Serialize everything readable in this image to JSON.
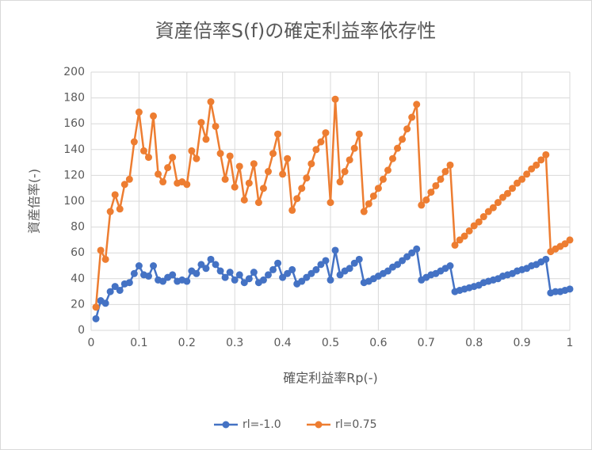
{
  "chart_data": {
    "type": "line",
    "title": "資産倍率S(f)の確定利益率依存性",
    "xlabel": "確定利益率Rp(-)",
    "ylabel": "資産倍率(-)",
    "x": [
      0.01,
      0.02,
      0.03,
      0.04,
      0.05,
      0.06,
      0.07,
      0.08,
      0.09,
      0.1,
      0.11,
      0.12,
      0.13,
      0.14,
      0.15,
      0.16,
      0.17,
      0.18,
      0.19,
      0.2,
      0.21,
      0.22,
      0.23,
      0.24,
      0.25,
      0.26,
      0.27,
      0.28,
      0.29,
      0.3,
      0.31,
      0.32,
      0.33,
      0.34,
      0.35,
      0.36,
      0.37,
      0.38,
      0.39,
      0.4,
      0.41,
      0.42,
      0.43,
      0.44,
      0.45,
      0.46,
      0.47,
      0.48,
      0.49,
      0.5,
      0.51,
      0.52,
      0.53,
      0.54,
      0.55,
      0.56,
      0.57,
      0.58,
      0.59,
      0.6,
      0.61,
      0.62,
      0.63,
      0.64,
      0.65,
      0.66,
      0.67,
      0.68,
      0.69,
      0.7,
      0.71,
      0.72,
      0.73,
      0.74,
      0.75,
      0.76,
      0.77,
      0.78,
      0.79,
      0.8,
      0.81,
      0.82,
      0.83,
      0.84,
      0.85,
      0.86,
      0.87,
      0.88,
      0.89,
      0.9,
      0.91,
      0.92,
      0.93,
      0.94,
      0.95,
      0.96,
      0.97,
      0.98,
      0.99,
      1
    ],
    "series": [
      {
        "name": "rl=-1.0",
        "color": "#4472c4",
        "values": [
          9,
          23,
          21,
          30,
          34,
          31,
          36,
          37,
          44,
          50,
          43,
          42,
          50,
          39,
          38,
          41,
          43,
          38,
          39,
          38,
          46,
          44,
          51,
          48,
          55,
          51,
          46,
          41,
          45,
          39,
          43,
          37,
          40,
          45,
          37,
          39,
          43,
          47,
          52,
          41,
          44,
          47,
          36,
          38,
          41,
          44,
          47,
          51,
          54,
          39,
          62,
          43,
          46,
          48,
          52,
          55,
          37,
          38,
          40,
          42,
          44,
          46,
          49,
          51,
          54,
          57,
          60,
          63,
          39,
          41,
          43,
          44,
          46,
          48,
          50,
          30,
          31,
          32,
          33,
          34,
          35,
          37,
          38,
          39,
          40,
          42,
          43,
          44,
          46,
          47,
          48,
          50,
          51,
          53,
          55,
          29,
          30,
          30,
          31,
          32
        ]
      },
      {
        "name": "rl=0.75",
        "color": "#ed7d31",
        "values": [
          18,
          62,
          55,
          92,
          105,
          94,
          113,
          117,
          146,
          169,
          139,
          134,
          166,
          121,
          115,
          126,
          134,
          114,
          115,
          113,
          139,
          133,
          161,
          148,
          177,
          158,
          137,
          117,
          135,
          111,
          127,
          101,
          114,
          129,
          99,
          110,
          123,
          137,
          152,
          121,
          133,
          93,
          102,
          110,
          118,
          129,
          140,
          146,
          153,
          99,
          179,
          115,
          123,
          132,
          141,
          152,
          92,
          98,
          104,
          110,
          117,
          124,
          133,
          141,
          148,
          156,
          165,
          175,
          97,
          101,
          107,
          112,
          117,
          123,
          128,
          66,
          70,
          73,
          77,
          81,
          84,
          88,
          92,
          95,
          99,
          103,
          106,
          110,
          114,
          117,
          121,
          125,
          128,
          132,
          136,
          61,
          63,
          65,
          67,
          70
        ]
      }
    ],
    "xlim": [
      0,
      1
    ],
    "xticks": [
      0,
      0.1,
      0.2,
      0.3,
      0.4,
      0.5,
      0.6,
      0.7,
      0.8,
      0.9,
      1
    ],
    "ylim": [
      0,
      200
    ],
    "yticks": [
      0,
      20,
      40,
      60,
      80,
      100,
      120,
      140,
      160,
      180,
      200
    ],
    "grid": true,
    "legend": "bottom"
  }
}
